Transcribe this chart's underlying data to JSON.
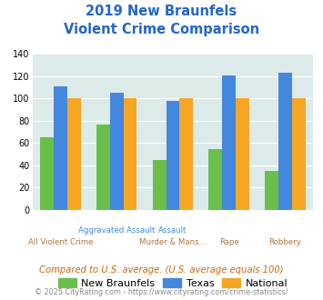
{
  "title_line1": "2019 New Braunfels",
  "title_line2": "Violent Crime Comparison",
  "new_braunfels": [
    65,
    77,
    45,
    55,
    35
  ],
  "texas": [
    111,
    105,
    98,
    121,
    123
  ],
  "national": [
    100,
    100,
    100,
    100,
    100
  ],
  "color_nb": "#6abf4b",
  "color_tx": "#4488dd",
  "color_nat": "#f5a623",
  "ylabel_min": 0,
  "ylabel_max": 140,
  "yticks": [
    0,
    20,
    40,
    60,
    80,
    100,
    120,
    140
  ],
  "legend_labels": [
    "New Braunfels",
    "Texas",
    "National"
  ],
  "footnote1": "Compared to U.S. average. (U.S. average equals 100)",
  "footnote2": "© 2025 CityRating.com - https://www.cityrating.com/crime-statistics/",
  "background_color": "#ddeaea",
  "title_color": "#2266cc",
  "xtick_top": [
    "",
    "Aggravated Assault",
    "Assault",
    "",
    ""
  ],
  "xtick_bottom": [
    "All Violent Crime",
    "",
    "Murder & Mans...",
    "Rape",
    "Robbery"
  ],
  "xtick_top_color": "#4488dd",
  "xtick_bottom_color": "#aa7744",
  "bar_width": 0.24
}
